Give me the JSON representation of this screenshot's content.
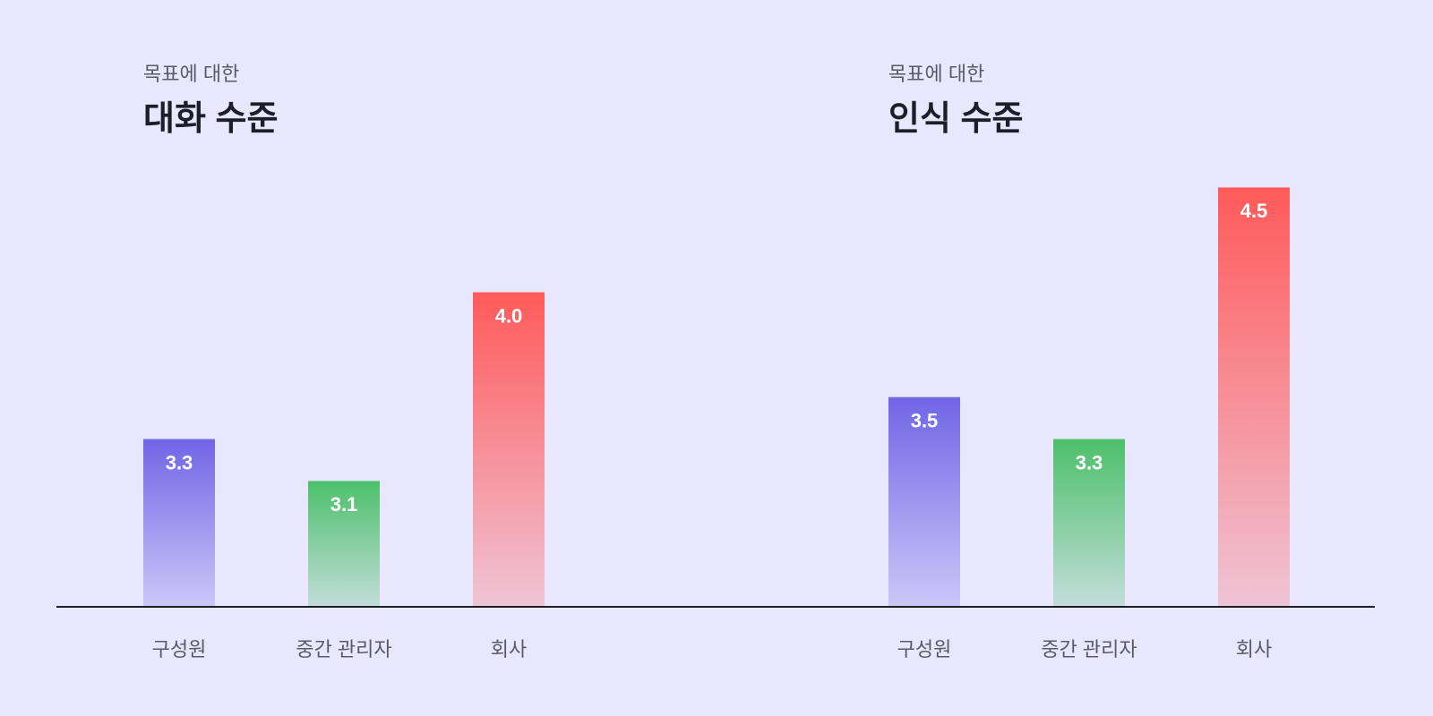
{
  "chart_data": [
    {
      "type": "bar",
      "subtitle": "목표에 대한",
      "title": "대화 수준",
      "categories": [
        "구성원",
        "중간 관리자",
        "회사"
      ],
      "values": [
        3.3,
        3.1,
        4.0
      ],
      "value_labels": [
        "3.3",
        "3.1",
        "4.0"
      ],
      "colors": [
        "#7065e6",
        "#4cc06a",
        "#ff5a5a"
      ],
      "ylim": [
        2.5,
        4.6
      ]
    },
    {
      "type": "bar",
      "subtitle": "목표에 대한",
      "title": "인식 수준",
      "categories": [
        "구성원",
        "중간 관리자",
        "회사"
      ],
      "values": [
        3.5,
        3.3,
        4.5
      ],
      "value_labels": [
        "3.5",
        "3.3",
        "4.5"
      ],
      "colors": [
        "#7065e6",
        "#4cc06a",
        "#ff5a5a"
      ],
      "ylim": [
        2.5,
        4.6
      ]
    }
  ]
}
